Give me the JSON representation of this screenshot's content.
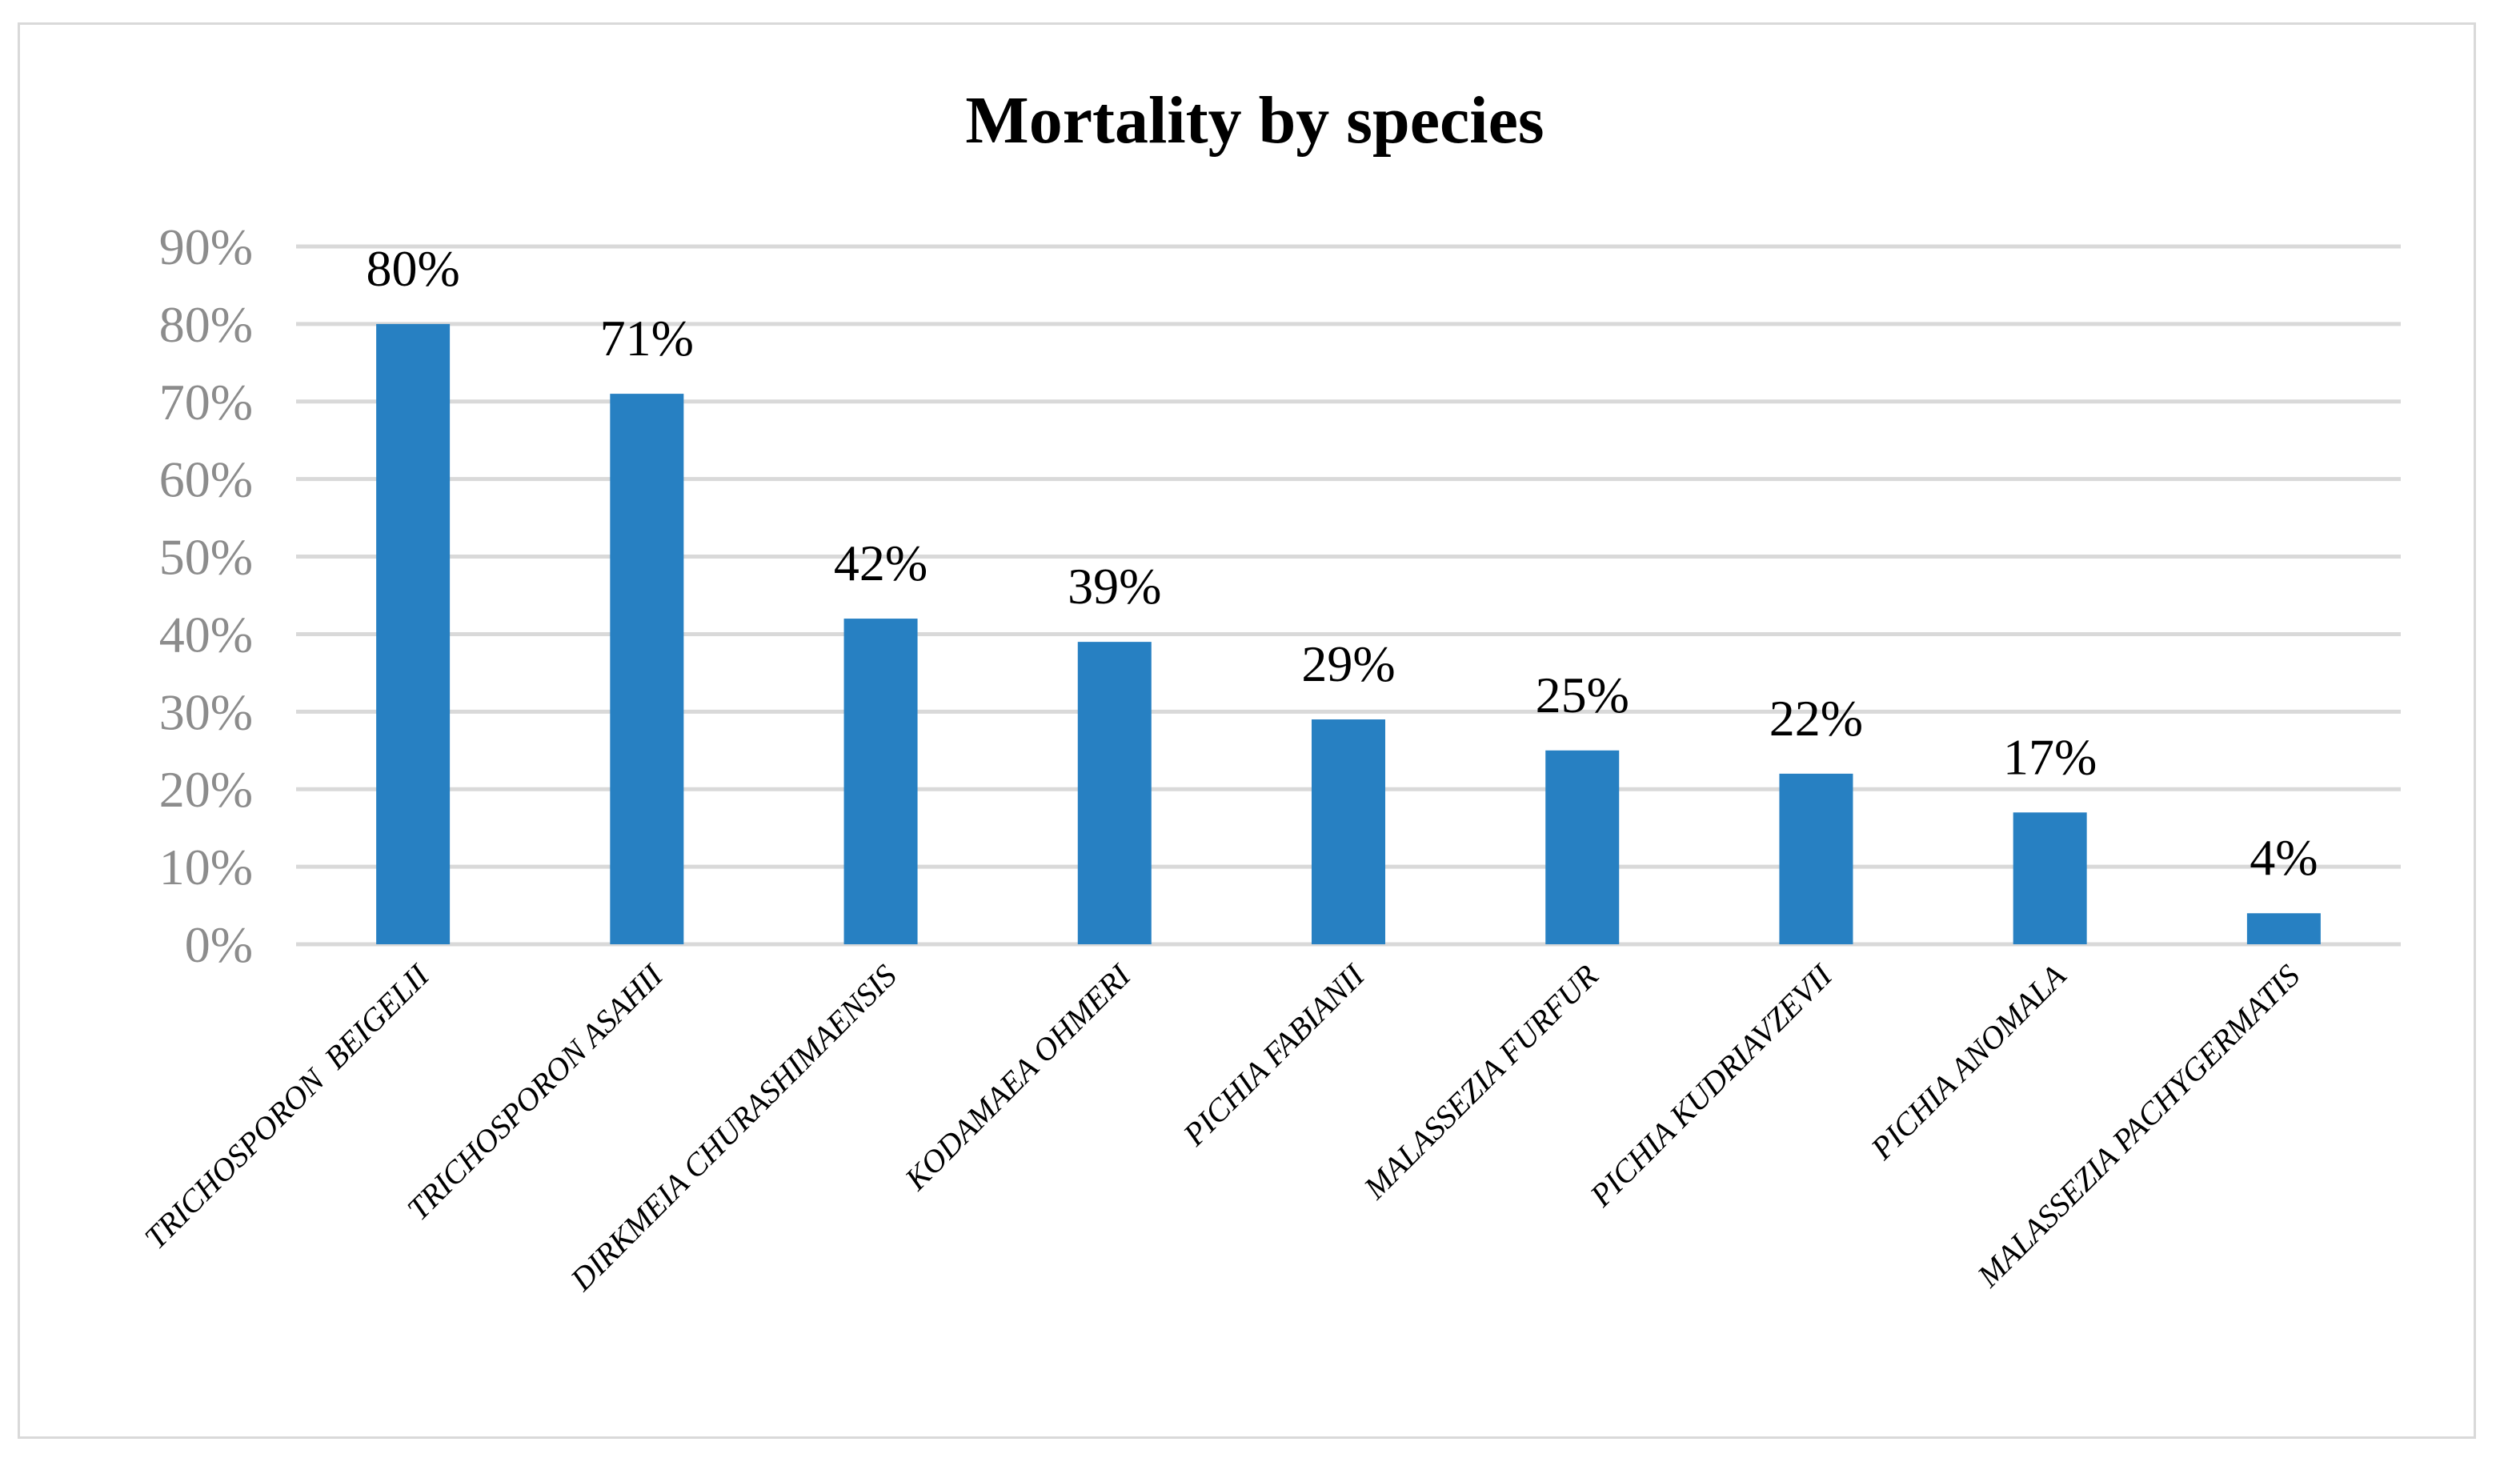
{
  "chart_data": {
    "type": "bar",
    "title": "Mortality by species",
    "xlabel": "",
    "ylabel": "",
    "ylim": [
      0,
      90
    ],
    "ytick_step": 10,
    "ytick_suffix": "%",
    "grid": true,
    "legend": "none",
    "categories": [
      "TRICHOSPORON  BEIGELII",
      "TRICHOSPORON ASAHII",
      "DIRKMEIA CHURASHIMAENSIS",
      "KODAMAEA OHMERI",
      "PICHIA FABIANII",
      "MALASSEZIA FURFUR",
      "PICHIA KUDRIAVZEVII",
      "PICHIA ANOMALA",
      "MALASSEZIA PACHYGERMATIS"
    ],
    "series": [
      {
        "name": "Mortality",
        "values": [
          80,
          71,
          42,
          39,
          29,
          25,
          22,
          17,
          4
        ]
      }
    ],
    "data_labels": [
      "80%",
      "71%",
      "42%",
      "39%",
      "29%",
      "25%",
      "22%",
      "17%",
      "4%"
    ],
    "ytick_labels": [
      "0%",
      "10%",
      "20%",
      "30%",
      "40%",
      "50%",
      "60%",
      "70%",
      "80%",
      "90%"
    ]
  },
  "colors": {
    "bar": "#2780c2",
    "grid": "#d9d9d9",
    "tick_text": "#8c8c8c",
    "text": "#000000",
    "border": "#d9d9d9"
  }
}
